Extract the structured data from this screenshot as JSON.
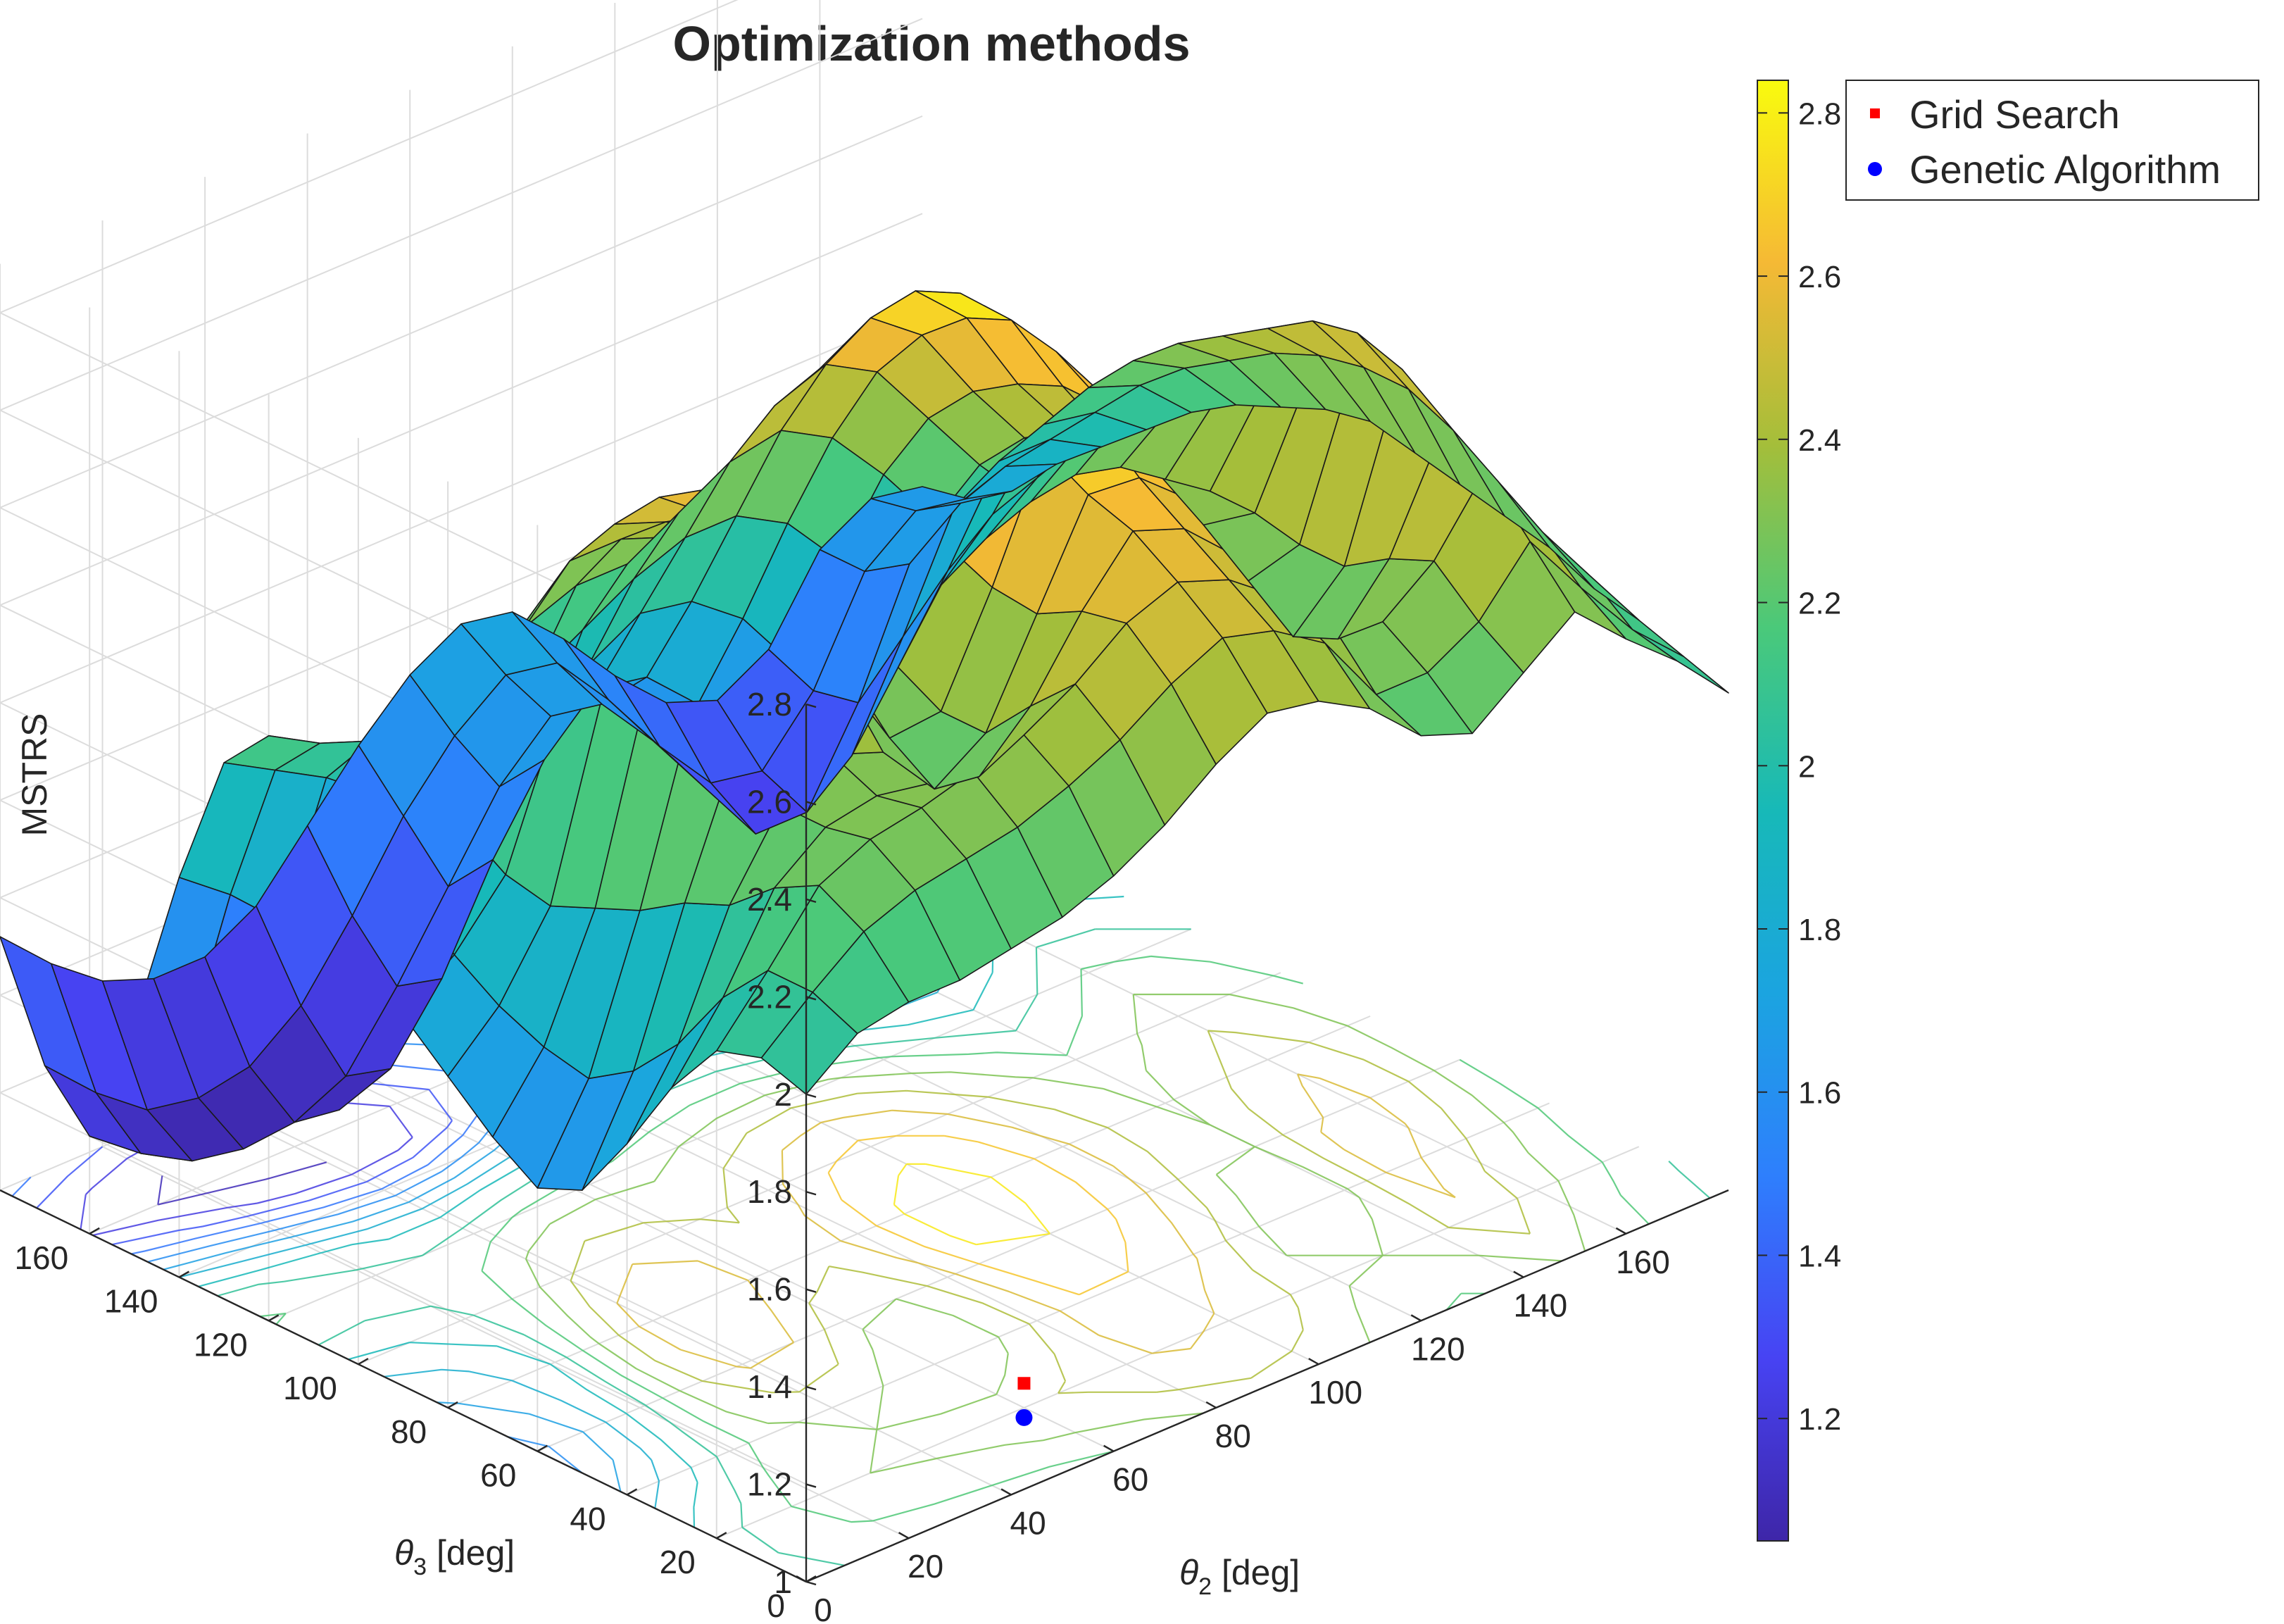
{
  "chart_data": {
    "type": "surface",
    "title": "Optimization methods",
    "zlabel": "MSTRS",
    "xlabel_symbol": "θ",
    "xlabel_sub": "2",
    "xlabel_unit": " [deg]",
    "ylabel_symbol": "θ",
    "ylabel_sub": "3",
    "ylabel_unit": " [deg]",
    "x_ticks": [
      "0",
      "20",
      "40",
      "60",
      "80",
      "100",
      "120",
      "140",
      "160"
    ],
    "y_ticks": [
      "0",
      "20",
      "40",
      "60",
      "80",
      "100",
      "120",
      "140",
      "160"
    ],
    "z_ticks": [
      "1",
      "1.2",
      "1.4",
      "1.6",
      "1.8",
      "2",
      "2.2",
      "2.4",
      "2.6",
      "2.8"
    ],
    "xlim": [
      0,
      180
    ],
    "ylim": [
      0,
      180
    ],
    "zlim": [
      1,
      2.9
    ],
    "colorbar": {
      "ticks": [
        "1.2",
        "1.4",
        "1.6",
        "1.8",
        "2",
        "2.2",
        "2.4",
        "2.6",
        "2.8"
      ],
      "range": [
        1.05,
        2.84
      ],
      "colormap": "parula"
    },
    "legend": [
      {
        "label": "Grid Search",
        "marker": "square",
        "color": "#ff0000"
      },
      {
        "label": "Genetic Algorithm",
        "marker": "circle",
        "color": "#0000ff"
      }
    ],
    "markers": [
      {
        "name": "Grid Search",
        "theta2": 60,
        "theta3": 20,
        "value": 1.05
      },
      {
        "name": "Genetic Algorithm",
        "theta2": 60,
        "theta3": 20,
        "value": 1.0
      }
    ],
    "surface": {
      "theta2": [
        0,
        10,
        20,
        30,
        40,
        50,
        60,
        70,
        80,
        90,
        100,
        110,
        120,
        130,
        140,
        150,
        160,
        170,
        180
      ],
      "theta3": [
        0,
        10,
        20,
        30,
        40,
        50,
        60,
        70,
        80,
        90,
        100,
        110,
        120,
        130,
        140,
        150,
        160,
        170,
        180
      ],
      "z": [
        [
          2.0,
          2.08,
          2.1,
          2.1,
          2.12,
          2.14,
          2.18,
          2.24,
          2.32,
          2.38,
          2.36,
          2.3,
          2.2,
          2.16,
          2.24,
          2.32,
          2.22,
          2.13,
          2.02
        ],
        [
          2.03,
          2.12,
          2.2,
          2.24,
          2.26,
          2.28,
          2.32,
          2.37,
          2.44,
          2.49,
          2.46,
          2.39,
          2.24,
          2.24,
          2.3,
          2.42,
          2.28,
          2.15,
          2.05
        ],
        [
          2.0,
          2.12,
          2.25,
          2.3,
          2.32,
          2.35,
          2.38,
          2.44,
          2.52,
          2.56,
          2.52,
          2.44,
          2.34,
          2.3,
          2.38,
          2.52,
          2.36,
          2.22,
          2.08
        ],
        [
          1.88,
          2.02,
          2.2,
          2.28,
          2.3,
          2.28,
          2.25,
          2.35,
          2.5,
          2.62,
          2.58,
          2.48,
          2.3,
          2.22,
          2.34,
          2.55,
          2.4,
          2.26,
          2.1
        ],
        [
          1.72,
          1.88,
          2.12,
          2.28,
          2.34,
          2.3,
          2.18,
          2.25,
          2.45,
          2.65,
          2.64,
          2.55,
          2.36,
          2.18,
          2.28,
          2.6,
          2.48,
          2.32,
          2.14
        ],
        [
          1.58,
          1.78,
          2.08,
          2.35,
          2.45,
          2.42,
          2.24,
          2.25,
          2.46,
          2.7,
          2.72,
          2.62,
          2.46,
          2.25,
          2.28,
          2.58,
          2.55,
          2.38,
          2.16
        ],
        [
          1.54,
          1.72,
          2.02,
          2.38,
          2.56,
          2.54,
          2.34,
          2.3,
          2.5,
          2.76,
          2.78,
          2.68,
          2.52,
          2.32,
          2.3,
          2.52,
          2.58,
          2.42,
          2.18
        ],
        [
          1.6,
          1.74,
          1.98,
          2.38,
          2.62,
          2.62,
          2.44,
          2.38,
          2.56,
          2.8,
          2.82,
          2.72,
          2.56,
          2.38,
          2.3,
          2.46,
          2.56,
          2.42,
          2.2
        ],
        [
          1.68,
          1.78,
          1.94,
          2.32,
          2.62,
          2.66,
          2.52,
          2.46,
          2.58,
          2.8,
          2.84,
          2.74,
          2.56,
          2.4,
          2.28,
          2.4,
          2.5,
          2.4,
          2.22
        ],
        [
          1.76,
          1.84,
          1.96,
          2.24,
          2.52,
          2.6,
          2.52,
          2.44,
          2.56,
          2.74,
          2.8,
          2.7,
          2.52,
          2.38,
          2.26,
          2.34,
          2.44,
          2.36,
          2.2
        ],
        [
          1.9,
          1.94,
          2.02,
          2.18,
          2.4,
          2.5,
          2.46,
          2.4,
          2.5,
          2.64,
          2.7,
          2.62,
          2.46,
          2.32,
          2.2,
          2.28,
          2.38,
          2.3,
          2.16
        ],
        [
          2.08,
          2.06,
          2.08,
          2.14,
          2.28,
          2.38,
          2.38,
          2.34,
          2.42,
          2.52,
          2.56,
          2.5,
          2.36,
          2.22,
          2.1,
          2.18,
          2.3,
          2.24,
          2.12
        ],
        [
          2.2,
          2.14,
          2.1,
          2.06,
          2.12,
          2.2,
          2.24,
          2.24,
          2.3,
          2.36,
          2.38,
          2.32,
          2.2,
          2.06,
          1.98,
          2.06,
          2.2,
          2.16,
          2.06
        ],
        [
          2.1,
          2.04,
          1.98,
          1.9,
          1.88,
          1.94,
          2.0,
          2.06,
          2.12,
          2.16,
          2.16,
          2.1,
          1.98,
          1.86,
          1.84,
          1.94,
          2.08,
          2.06,
          1.98
        ],
        [
          1.82,
          1.74,
          1.64,
          1.54,
          1.48,
          1.52,
          1.64,
          1.78,
          1.9,
          1.96,
          1.94,
          1.86,
          1.72,
          1.6,
          1.62,
          1.78,
          1.96,
          1.96,
          1.9
        ],
        [
          1.48,
          1.38,
          1.26,
          1.16,
          1.12,
          1.16,
          1.3,
          1.5,
          1.66,
          1.76,
          1.74,
          1.64,
          1.5,
          1.38,
          1.4,
          1.6,
          1.82,
          1.86,
          1.82
        ],
        [
          1.2,
          1.12,
          1.06,
          1.04,
          1.05,
          1.1,
          1.24,
          1.4,
          1.56,
          1.66,
          1.64,
          1.52,
          1.38,
          1.24,
          1.24,
          1.42,
          1.66,
          1.74,
          1.72
        ],
        [
          1.3,
          1.2,
          1.12,
          1.1,
          1.12,
          1.2,
          1.34,
          1.5,
          1.62,
          1.7,
          1.68,
          1.56,
          1.42,
          1.3,
          1.28,
          1.4,
          1.6,
          1.68,
          1.66
        ],
        [
          1.52,
          1.42,
          1.34,
          1.3,
          1.3,
          1.36,
          1.48,
          1.6,
          1.7,
          1.76,
          1.74,
          1.64,
          1.52,
          1.42,
          1.38,
          1.44,
          1.6,
          1.66,
          1.64
        ]
      ]
    }
  }
}
